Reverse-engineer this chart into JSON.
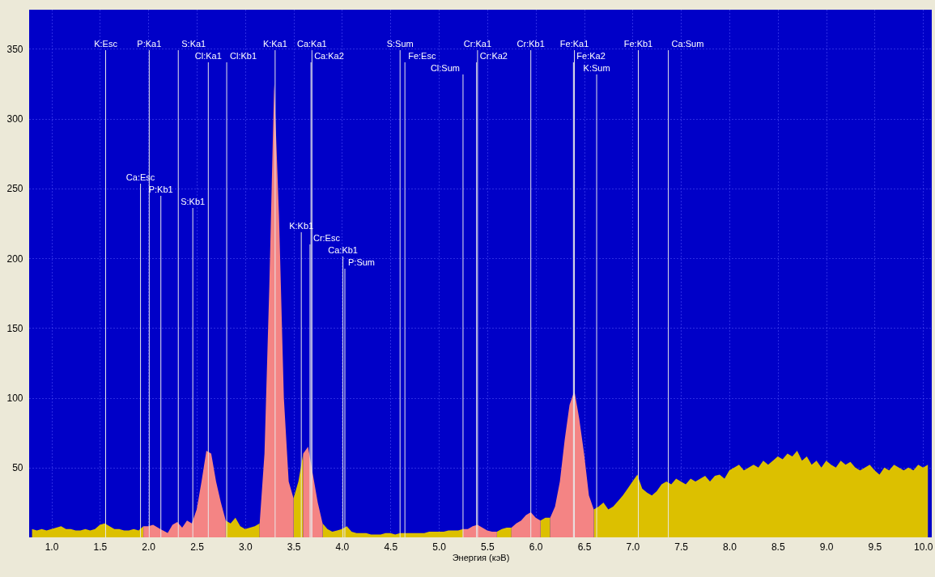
{
  "chart_data": {
    "type": "area",
    "xlabel": "Энергия (кэВ)",
    "x": [
      0.8,
      0.85,
      0.9,
      0.95,
      1.0,
      1.05,
      1.1,
      1.15,
      1.2,
      1.25,
      1.3,
      1.35,
      1.4,
      1.45,
      1.5,
      1.55,
      1.6,
      1.65,
      1.7,
      1.75,
      1.8,
      1.85,
      1.9,
      1.95,
      2.0,
      2.05,
      2.1,
      2.15,
      2.2,
      2.25,
      2.3,
      2.35,
      2.4,
      2.45,
      2.5,
      2.55,
      2.6,
      2.65,
      2.7,
      2.75,
      2.8,
      2.85,
      2.9,
      2.95,
      3.0,
      3.05,
      3.1,
      3.15,
      3.2,
      3.25,
      3.3,
      3.35,
      3.4,
      3.45,
      3.5,
      3.55,
      3.6,
      3.65,
      3.7,
      3.75,
      3.8,
      3.85,
      3.9,
      3.95,
      4.0,
      4.05,
      4.1,
      4.15,
      4.2,
      4.25,
      4.3,
      4.35,
      4.4,
      4.45,
      4.5,
      4.55,
      4.6,
      4.65,
      4.7,
      4.75,
      4.8,
      4.85,
      4.9,
      4.95,
      5.0,
      5.05,
      5.1,
      5.15,
      5.2,
      5.25,
      5.3,
      5.35,
      5.4,
      5.45,
      5.5,
      5.55,
      5.6,
      5.65,
      5.7,
      5.75,
      5.8,
      5.85,
      5.9,
      5.95,
      6.0,
      6.05,
      6.1,
      6.15,
      6.2,
      6.25,
      6.3,
      6.35,
      6.4,
      6.45,
      6.5,
      6.55,
      6.6,
      6.65,
      6.7,
      6.75,
      6.8,
      6.85,
      6.9,
      6.95,
      7.0,
      7.05,
      7.1,
      7.15,
      7.2,
      7.25,
      7.3,
      7.35,
      7.4,
      7.45,
      7.5,
      7.55,
      7.6,
      7.65,
      7.7,
      7.75,
      7.8,
      7.85,
      7.9,
      7.95,
      8.0,
      8.05,
      8.1,
      8.15,
      8.2,
      8.25,
      8.3,
      8.35,
      8.4,
      8.45,
      8.5,
      8.55,
      8.6,
      8.65,
      8.7,
      8.75,
      8.8,
      8.85,
      8.9,
      8.95,
      9.0,
      9.05,
      9.1,
      9.15,
      9.2,
      9.25,
      9.3,
      9.35,
      9.4,
      9.45,
      9.5,
      9.55,
      9.6,
      9.65,
      9.7,
      9.75,
      9.8,
      9.85,
      9.9,
      9.95,
      10.0,
      10.05
    ],
    "series": [
      {
        "color": "#dcc000",
        "values": [
          6,
          5,
          6,
          5,
          6,
          7,
          8,
          6,
          6,
          5,
          5,
          6,
          5,
          6,
          9,
          10,
          8,
          6,
          6,
          5,
          5,
          6,
          5,
          8,
          null,
          null,
          null,
          5,
          3,
          null,
          null,
          null,
          null,
          null,
          null,
          null,
          null,
          null,
          null,
          null,
          12,
          10,
          14,
          8,
          6,
          7,
          8,
          10,
          null,
          null,
          null,
          null,
          null,
          null,
          28,
          40,
          60,
          null,
          null,
          null,
          10,
          6,
          4,
          5,
          6,
          8,
          4,
          3,
          3,
          3,
          2,
          2,
          2,
          3,
          3,
          2,
          3,
          3,
          3,
          3,
          3,
          3,
          4,
          4,
          4,
          4,
          5,
          5,
          5,
          6,
          null,
          null,
          null,
          null,
          null,
          null,
          4,
          6,
          7,
          7,
          null,
          null,
          null,
          null,
          null,
          12,
          14,
          14,
          null,
          null,
          null,
          null,
          null,
          null,
          null,
          null,
          20,
          22,
          25,
          20,
          22,
          26,
          30,
          35,
          40,
          45,
          35,
          32,
          30,
          33,
          38,
          40,
          38,
          42,
          40,
          38,
          42,
          40,
          42,
          44,
          40,
          44,
          45,
          42,
          48,
          50,
          52,
          48,
          50,
          52,
          50,
          55,
          52,
          55,
          58,
          56,
          60,
          58,
          62,
          55,
          58,
          52,
          55,
          50,
          55,
          52,
          50,
          55,
          52,
          54,
          50,
          48,
          50,
          52,
          48,
          45,
          50,
          48,
          52,
          50,
          48,
          50,
          48,
          52,
          50,
          52
        ]
      },
      {
        "color": "#f48484",
        "values": [
          null,
          null,
          null,
          null,
          null,
          null,
          null,
          null,
          null,
          null,
          null,
          null,
          null,
          null,
          null,
          null,
          null,
          null,
          null,
          null,
          null,
          null,
          null,
          8,
          8,
          9,
          7,
          5,
          3,
          9,
          11,
          7,
          12,
          10,
          20,
          40,
          62,
          60,
          40,
          25,
          12,
          null,
          null,
          null,
          null,
          null,
          null,
          10,
          60,
          180,
          325,
          230,
          100,
          40,
          28,
          null,
          60,
          65,
          45,
          25,
          10,
          null,
          null,
          null,
          null,
          null,
          null,
          null,
          null,
          null,
          null,
          null,
          null,
          null,
          null,
          null,
          null,
          null,
          null,
          null,
          null,
          null,
          null,
          null,
          null,
          null,
          null,
          null,
          null,
          6,
          6,
          8,
          9,
          7,
          5,
          4,
          4,
          null,
          null,
          7,
          10,
          12,
          16,
          18,
          14,
          12,
          null,
          14,
          22,
          40,
          70,
          95,
          105,
          85,
          60,
          30,
          20,
          null,
          null,
          null,
          null,
          null,
          null,
          null,
          null,
          null,
          null,
          null,
          null,
          null,
          null,
          null,
          null,
          null,
          null,
          null,
          null,
          null,
          null,
          null,
          null,
          null,
          null,
          null,
          null,
          null,
          null,
          null,
          null,
          null,
          null,
          null,
          null,
          null,
          null,
          null,
          null,
          null,
          null,
          null,
          null,
          null,
          null,
          null,
          null,
          null,
          null,
          null,
          null,
          null,
          null,
          null,
          null,
          null,
          null,
          null,
          null,
          null,
          null,
          null,
          null,
          null,
          null,
          null,
          null,
          null
        ]
      }
    ],
    "xlim": [
      0.77,
      10.09
    ],
    "xticks": [
      {
        "value": 1.0,
        "label": "1.0"
      },
      {
        "value": 1.5,
        "label": "1.5"
      },
      {
        "value": 2.0,
        "label": "2.0"
      },
      {
        "value": 2.5,
        "label": "2.5"
      },
      {
        "value": 3.0,
        "label": "3.0"
      },
      {
        "value": 3.5,
        "label": "3.5"
      },
      {
        "value": 4.0,
        "label": "4.0"
      },
      {
        "value": 4.5,
        "label": "4.5"
      },
      {
        "value": 5.0,
        "label": "5.0"
      },
      {
        "value": 5.5,
        "label": "5.5"
      },
      {
        "value": 6.0,
        "label": "6.0"
      },
      {
        "value": 6.5,
        "label": "6.5"
      },
      {
        "value": 7.0,
        "label": "7.0"
      },
      {
        "value": 7.5,
        "label": "7.5"
      },
      {
        "value": 8.0,
        "label": "8.0"
      },
      {
        "value": 8.5,
        "label": "8.5"
      },
      {
        "value": 9.0,
        "label": "9.0"
      },
      {
        "value": 9.5,
        "label": "9.5"
      },
      {
        "value": 10.0,
        "label": "10.0"
      }
    ],
    "ylim": [
      0,
      378
    ],
    "yticks": [
      50,
      100,
      150,
      200,
      250,
      300,
      350
    ],
    "grid": true,
    "ref_lines": [
      {
        "axis": "x",
        "value": 2.01,
        "label": "P:Ka1"
      },
      {
        "axis": "x",
        "value": 2.31,
        "label": "S:Ka1"
      },
      {
        "axis": "x",
        "value": 2.62,
        "label": "Cl:Ka1"
      },
      {
        "axis": "x",
        "value": 3.31,
        "label": "K:Ka1"
      },
      {
        "axis": "x",
        "value": 3.69,
        "label": "Ca:Ka1"
      },
      {
        "axis": "x",
        "value": 5.4,
        "label": "Cr:Ka1"
      },
      {
        "axis": "x",
        "value": 6.4,
        "label": "Fe:Ka1"
      },
      {
        "axis": "x",
        "value": 3.68,
        "label": "Ca:Ka2"
      },
      {
        "axis": "x",
        "value": 5.39,
        "label": "Cr:Ka2"
      },
      {
        "axis": "x",
        "value": 6.39,
        "label": "Fe:Ka2"
      },
      {
        "axis": "x",
        "value": 1.56,
        "label": "K:Esc"
      },
      {
        "axis": "x",
        "value": 1.92,
        "label": "Ca:Esc"
      },
      {
        "axis": "x",
        "value": 2.13,
        "label": "P:Kb1"
      },
      {
        "axis": "x",
        "value": 2.46,
        "label": "S:Kb1"
      },
      {
        "axis": "x",
        "value": 2.81,
        "label": "Cl:Kb1"
      },
      {
        "axis": "x",
        "value": 3.58,
        "label": "K:Kb1"
      },
      {
        "axis": "x",
        "value": 3.67,
        "label": "Cr:Esc"
      },
      {
        "axis": "x",
        "value": 4.01,
        "label": "Ca:Kb1"
      },
      {
        "axis": "x",
        "value": 4.03,
        "label": "P:Sum"
      },
      {
        "axis": "x",
        "value": 4.6,
        "label": "S:Sum"
      },
      {
        "axis": "x",
        "value": 4.65,
        "label": "Fe:Esc"
      },
      {
        "axis": "x",
        "value": 5.25,
        "label": "Cl:Sum"
      },
      {
        "axis": "x",
        "value": 5.95,
        "label": "Cr:Kb1"
      },
      {
        "axis": "x",
        "value": 6.63,
        "label": "K:Sum"
      },
      {
        "axis": "x",
        "value": 7.06,
        "label": "Fe:Kb1"
      },
      {
        "axis": "x",
        "value": 7.37,
        "label": "Ca:Sum"
      }
    ]
  }
}
